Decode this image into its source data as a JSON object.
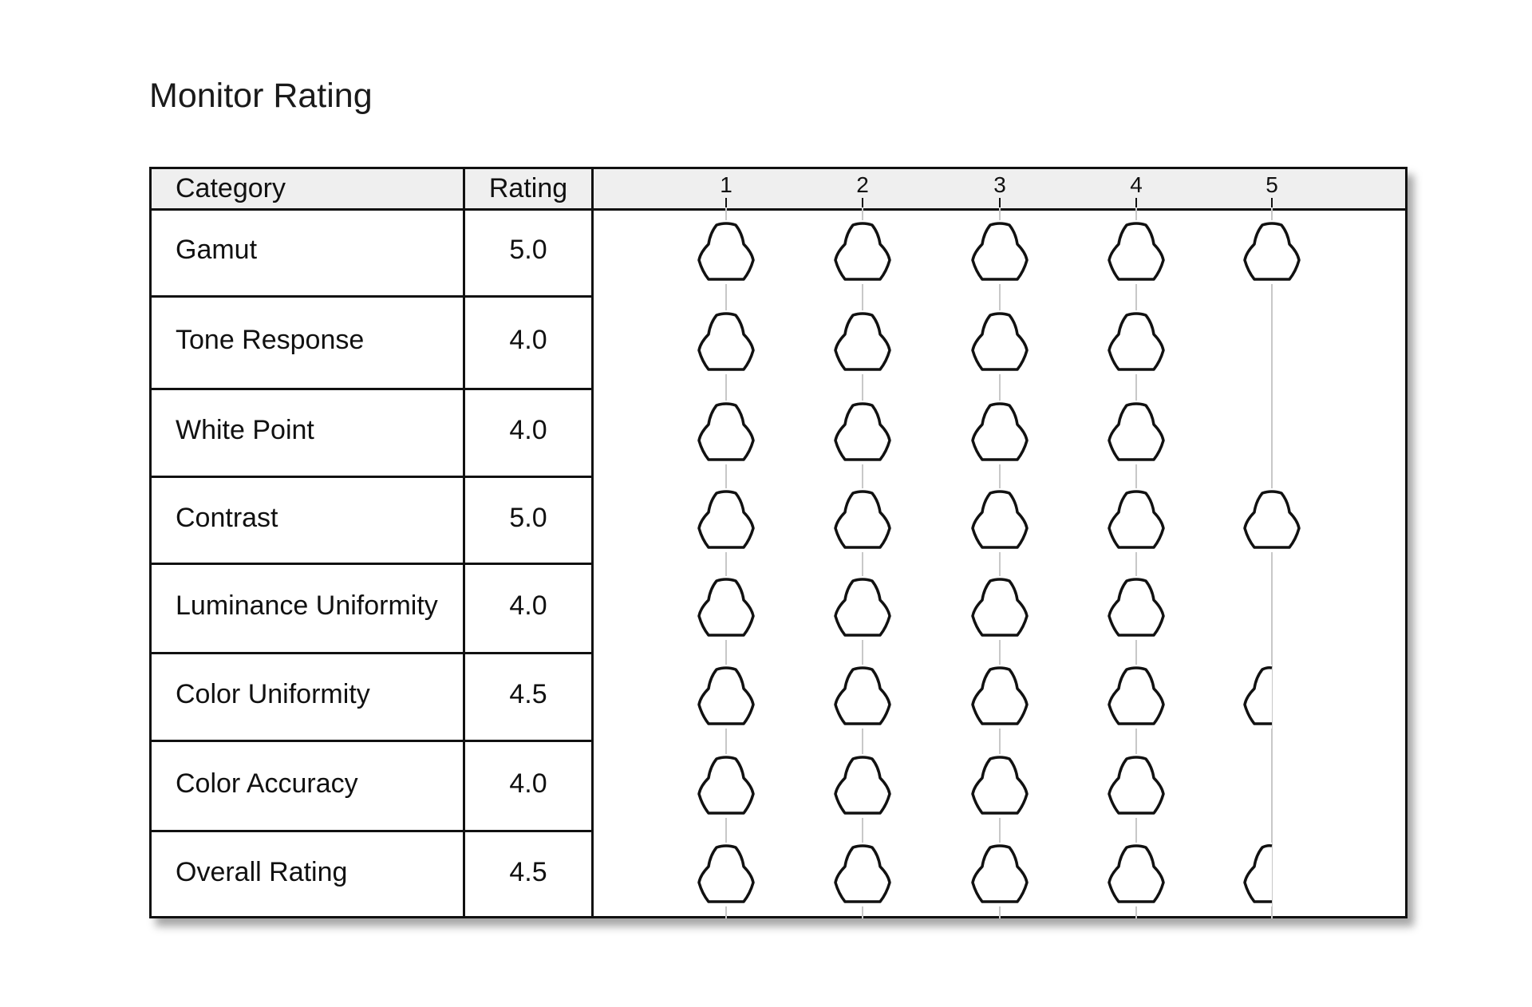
{
  "title": "Monitor Rating",
  "table": {
    "headers": {
      "category": "Category",
      "rating": "Rating"
    },
    "scale": [
      "1",
      "2",
      "3",
      "4",
      "5"
    ],
    "rows": [
      {
        "category": "Gamut",
        "rating": "5.0"
      },
      {
        "category": "Tone Response",
        "rating": "4.0"
      },
      {
        "category": "White Point",
        "rating": "4.0"
      },
      {
        "category": "Contrast",
        "rating": "5.0"
      },
      {
        "category": "Luminance Uniformity",
        "rating": "4.0"
      },
      {
        "category": "Color Uniformity",
        "rating": "4.5"
      },
      {
        "category": "Color Accuracy",
        "rating": "4.0"
      },
      {
        "category": "Overall Rating",
        "rating": "4.5"
      }
    ]
  },
  "chart_data": {
    "type": "table",
    "title": "Monitor Rating",
    "columns": [
      "Category",
      "Rating",
      "1",
      "2",
      "3",
      "4",
      "5"
    ],
    "categories": [
      "Gamut",
      "Tone Response",
      "White Point",
      "Contrast",
      "Luminance Uniformity",
      "Color Uniformity",
      "Color Accuracy",
      "Overall Rating"
    ],
    "values": [
      5.0,
      4.0,
      4.0,
      5.0,
      4.0,
      4.5,
      4.0,
      4.5
    ],
    "xlim": [
      1,
      5
    ],
    "icon": "pear-shaped rating glyph, half glyph for .5"
  }
}
